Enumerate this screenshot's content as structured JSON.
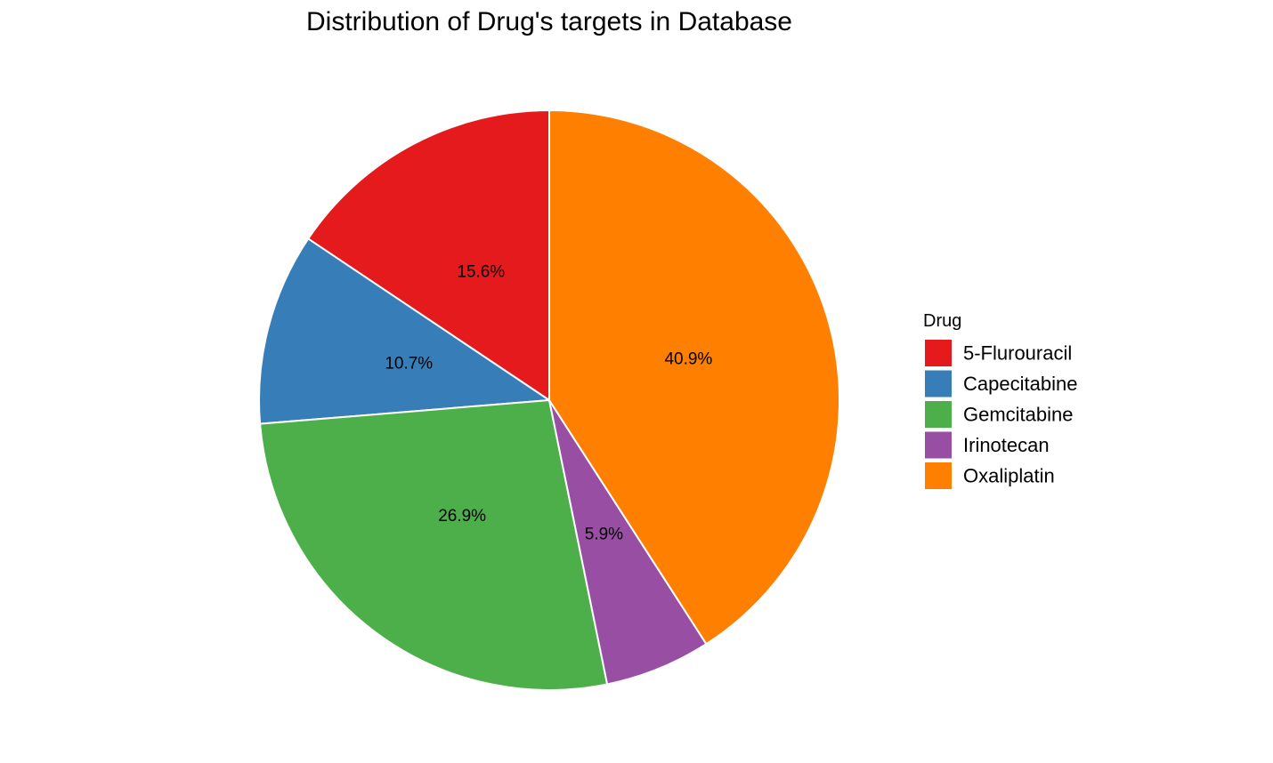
{
  "chart_data": {
    "type": "pie",
    "title": "Distribution of Drug's targets in Database",
    "legend_title": "Drug",
    "legend_position": "right",
    "start_angle_deg": 0,
    "direction": "counterclockwise",
    "slices": [
      {
        "label": "5-Flurouracil",
        "value": 15.6,
        "display": "15.6%",
        "color": "#E41A1C"
      },
      {
        "label": "Capecitabine",
        "value": 10.7,
        "display": "10.7%",
        "color": "#377EB8"
      },
      {
        "label": "Gemcitabine",
        "value": 26.9,
        "display": "26.9%",
        "color": "#4DAF4A"
      },
      {
        "label": "Irinotecan",
        "value": 5.9,
        "display": "5.9%",
        "color": "#984EA3"
      },
      {
        "label": "Oxaliplatin",
        "value": 40.9,
        "display": "40.9%",
        "color": "#FF7F00"
      }
    ]
  }
}
